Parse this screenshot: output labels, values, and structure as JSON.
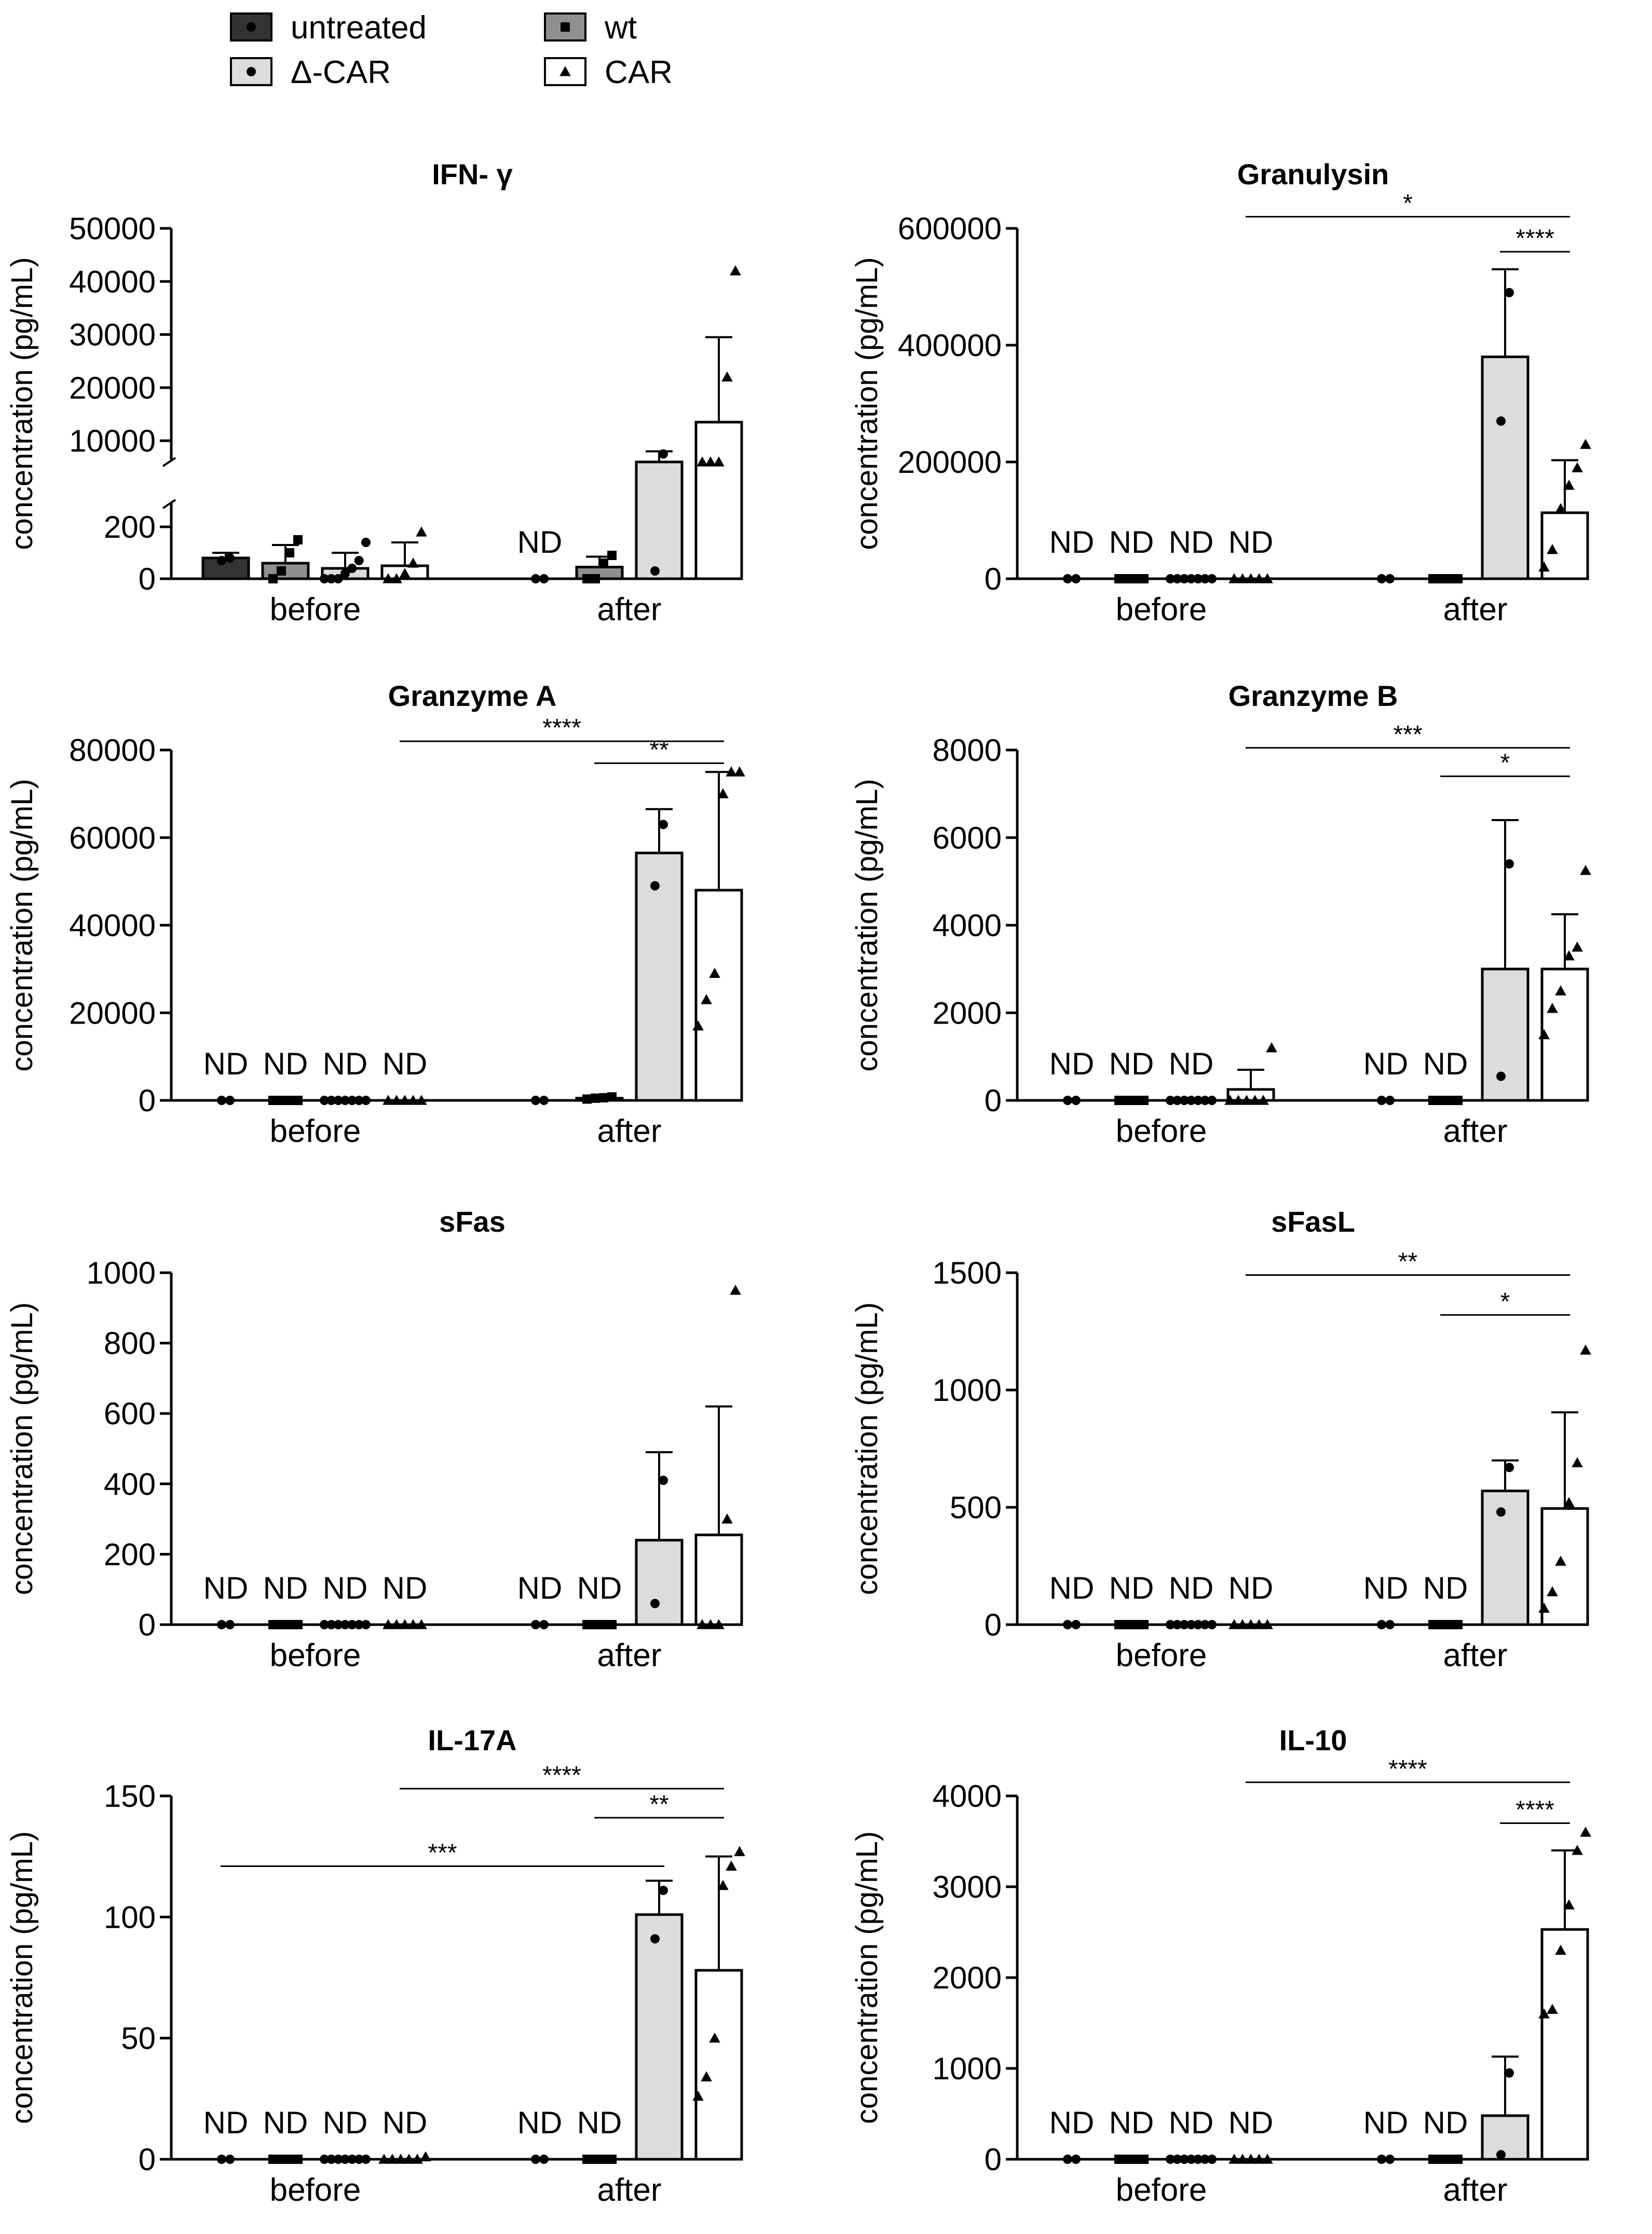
{
  "colors": {
    "untreated": "#333333",
    "wt": "#8f8f8f",
    "dcar": "#dcdcdc",
    "car": "#ffffff",
    "axis": "#000000"
  },
  "legend": {
    "items": [
      {
        "key": "untreated",
        "label": "untreated",
        "icon": "circle-icon"
      },
      {
        "key": "wt",
        "label": "wt",
        "icon": "square-icon"
      },
      {
        "key": "dcar",
        "label": "Δ-CAR",
        "icon": "circle-icon"
      },
      {
        "key": "car",
        "label": "CAR",
        "icon": "triangle-icon"
      }
    ]
  },
  "chart_data": [
    {
      "type": "bar",
      "title": "IFN- γ",
      "ylabel": "concentration (pg/mL)",
      "groups": [
        "before",
        "after"
      ],
      "series_order": [
        "untreated",
        "wt",
        "dcar",
        "car"
      ],
      "axis": {
        "broken": true,
        "lower": {
          "range": [
            0,
            300
          ],
          "ticks": [
            0,
            200
          ]
        },
        "upper": {
          "range": [
            6000,
            50000
          ],
          "ticks": [
            10000,
            20000,
            30000,
            40000,
            50000
          ]
        }
      },
      "bars": [
        {
          "g": 0,
          "s": "untreated",
          "v": 80,
          "err": 20,
          "pts": [
            70,
            80
          ]
        },
        {
          "g": 0,
          "s": "wt",
          "v": 60,
          "err": 70,
          "pts": [
            0,
            30,
            100,
            150
          ]
        },
        {
          "g": 0,
          "s": "dcar",
          "v": 40,
          "err": 60,
          "pts": [
            0,
            0,
            0,
            20,
            40,
            70,
            140
          ]
        },
        {
          "g": 0,
          "s": "car",
          "v": 50,
          "err": 90,
          "pts": [
            0,
            0,
            20,
            60,
            180
          ]
        },
        {
          "g": 1,
          "s": "untreated",
          "nd": true,
          "pts": [
            0,
            0
          ]
        },
        {
          "g": 1,
          "s": "wt",
          "v": 45,
          "err": 40,
          "pts": [
            0,
            0,
            60,
            90
          ]
        },
        {
          "g": 1,
          "s": "dcar",
          "v": 4000,
          "err": 4000,
          "pts": [
            30,
            7500
          ]
        },
        {
          "g": 1,
          "s": "car",
          "v": 13500,
          "err": 16000,
          "pts": [
            5000,
            5500,
            6000,
            22000,
            42000
          ]
        }
      ],
      "sig": []
    },
    {
      "type": "bar",
      "title": "Granulysin",
      "ylabel": "concentration (pg/mL)",
      "groups": [
        "before",
        "after"
      ],
      "series_order": [
        "untreated",
        "wt",
        "dcar",
        "car"
      ],
      "ylim": [
        0,
        600000
      ],
      "ticks": [
        0,
        200000,
        400000,
        600000
      ],
      "bars": [
        {
          "g": 0,
          "s": "untreated",
          "nd": true,
          "pts": [
            0,
            0
          ]
        },
        {
          "g": 0,
          "s": "wt",
          "nd": true,
          "pts": [
            0,
            0,
            0,
            0
          ]
        },
        {
          "g": 0,
          "s": "dcar",
          "nd": true,
          "pts": [
            0,
            0,
            0,
            0,
            0,
            0,
            0
          ]
        },
        {
          "g": 0,
          "s": "car",
          "nd": true,
          "pts": [
            0,
            0,
            0,
            0,
            0
          ]
        },
        {
          "g": 1,
          "s": "untreated",
          "pts": [
            0,
            0
          ]
        },
        {
          "g": 1,
          "s": "wt",
          "pts": [
            0,
            0,
            0,
            0
          ]
        },
        {
          "g": 1,
          "s": "dcar",
          "v": 380000,
          "err": 150000,
          "pts": [
            270000,
            490000
          ]
        },
        {
          "g": 1,
          "s": "car",
          "v": 113000,
          "err": 90000,
          "pts": [
            20000,
            50000,
            120000,
            160000,
            190000,
            230000
          ]
        }
      ],
      "sig": [
        {
          "label": "*",
          "from": [
            0,
            "car"
          ],
          "to": [
            1,
            "car"
          ],
          "y": 620000
        },
        {
          "label": "****",
          "from": [
            1,
            "dcar"
          ],
          "to": [
            1,
            "car"
          ],
          "y": 560000
        }
      ]
    },
    {
      "type": "bar",
      "title": "Granzyme A",
      "ylabel": "concentration (pg/mL)",
      "groups": [
        "before",
        "after"
      ],
      "series_order": [
        "untreated",
        "wt",
        "dcar",
        "car"
      ],
      "ylim": [
        0,
        80000
      ],
      "ticks": [
        0,
        20000,
        40000,
        60000,
        80000
      ],
      "bars": [
        {
          "g": 0,
          "s": "untreated",
          "nd": true,
          "pts": [
            0,
            0
          ]
        },
        {
          "g": 0,
          "s": "wt",
          "nd": true,
          "pts": [
            0,
            0,
            0,
            0
          ]
        },
        {
          "g": 0,
          "s": "dcar",
          "nd": true,
          "pts": [
            0,
            0,
            0,
            0,
            0,
            0,
            0
          ]
        },
        {
          "g": 0,
          "s": "car",
          "nd": true,
          "pts": [
            0,
            0,
            0,
            0,
            0
          ]
        },
        {
          "g": 1,
          "s": "untreated",
          "pts": [
            0,
            0
          ]
        },
        {
          "g": 1,
          "s": "wt",
          "v": 500,
          "err": 200,
          "pts": [
            300,
            500,
            600,
            800
          ]
        },
        {
          "g": 1,
          "s": "dcar",
          "v": 56500,
          "err": 10000,
          "pts": [
            49000,
            63000
          ]
        },
        {
          "g": 1,
          "s": "car",
          "v": 48000,
          "err": 27000,
          "pts": [
            17000,
            23000,
            29000,
            70000,
            75000,
            75000
          ]
        }
      ],
      "sig": [
        {
          "label": "****",
          "from": [
            0,
            "car"
          ],
          "to": [
            1,
            "car"
          ],
          "y": 82000
        },
        {
          "label": "**",
          "from": [
            1,
            "wt"
          ],
          "to": [
            1,
            "car"
          ],
          "y": 77000
        }
      ]
    },
    {
      "type": "bar",
      "title": "Granzyme B",
      "ylabel": "concentration (pg/mL)",
      "groups": [
        "before",
        "after"
      ],
      "series_order": [
        "untreated",
        "wt",
        "dcar",
        "car"
      ],
      "ylim": [
        0,
        8000
      ],
      "ticks": [
        0,
        2000,
        4000,
        6000,
        8000
      ],
      "bars": [
        {
          "g": 0,
          "s": "untreated",
          "nd": true,
          "pts": [
            0,
            0
          ]
        },
        {
          "g": 0,
          "s": "wt",
          "nd": true,
          "pts": [
            0,
            0,
            0,
            0
          ]
        },
        {
          "g": 0,
          "s": "dcar",
          "nd": true,
          "pts": [
            0,
            0,
            0,
            0,
            0,
            0,
            0
          ]
        },
        {
          "g": 0,
          "s": "car",
          "v": 250,
          "err": 450,
          "pts": [
            0,
            0,
            0,
            0,
            0,
            1200
          ]
        },
        {
          "g": 1,
          "s": "untreated",
          "nd": true,
          "pts": [
            0,
            0
          ]
        },
        {
          "g": 1,
          "s": "wt",
          "nd": true,
          "pts": [
            0,
            0,
            0,
            0
          ]
        },
        {
          "g": 1,
          "s": "dcar",
          "v": 3000,
          "err": 3400,
          "pts": [
            550,
            5400
          ]
        },
        {
          "g": 1,
          "s": "car",
          "v": 3000,
          "err": 1250,
          "pts": [
            1500,
            2100,
            2500,
            3300,
            3500,
            5250
          ]
        }
      ],
      "sig": [
        {
          "label": "***",
          "from": [
            0,
            "car"
          ],
          "to": [
            1,
            "car"
          ],
          "y": 8050
        },
        {
          "label": "*",
          "from": [
            1,
            "wt"
          ],
          "to": [
            1,
            "car"
          ],
          "y": 7400
        }
      ]
    },
    {
      "type": "bar",
      "title": "sFas",
      "ylabel": "concentration (pg/mL)",
      "groups": [
        "before",
        "after"
      ],
      "series_order": [
        "untreated",
        "wt",
        "dcar",
        "car"
      ],
      "ylim": [
        0,
        1000
      ],
      "ticks": [
        0,
        200,
        400,
        600,
        800,
        1000
      ],
      "bars": [
        {
          "g": 0,
          "s": "untreated",
          "nd": true,
          "pts": [
            0,
            0
          ]
        },
        {
          "g": 0,
          "s": "wt",
          "nd": true,
          "pts": [
            0,
            0,
            0,
            0
          ]
        },
        {
          "g": 0,
          "s": "dcar",
          "nd": true,
          "pts": [
            0,
            0,
            0,
            0,
            0,
            0,
            0
          ]
        },
        {
          "g": 0,
          "s": "car",
          "nd": true,
          "pts": [
            0,
            0,
            0,
            0,
            0
          ]
        },
        {
          "g": 1,
          "s": "untreated",
          "nd": true,
          "pts": [
            0,
            0
          ]
        },
        {
          "g": 1,
          "s": "wt",
          "nd": true,
          "pts": [
            0,
            0,
            0,
            0
          ]
        },
        {
          "g": 1,
          "s": "dcar",
          "v": 240,
          "err": 250,
          "pts": [
            60,
            410
          ]
        },
        {
          "g": 1,
          "s": "car",
          "v": 255,
          "err": 365,
          "pts": [
            0,
            0,
            0,
            300,
            950
          ]
        }
      ],
      "sig": []
    },
    {
      "type": "bar",
      "title": "sFasL",
      "ylabel": "concentration (pg/mL)",
      "groups": [
        "before",
        "after"
      ],
      "series_order": [
        "untreated",
        "wt",
        "dcar",
        "car"
      ],
      "ylim": [
        0,
        1500
      ],
      "ticks": [
        0,
        500,
        1000,
        1500
      ],
      "bars": [
        {
          "g": 0,
          "s": "untreated",
          "nd": true,
          "pts": [
            0,
            0
          ]
        },
        {
          "g": 0,
          "s": "wt",
          "nd": true,
          "pts": [
            0,
            0,
            0,
            0
          ]
        },
        {
          "g": 0,
          "s": "dcar",
          "nd": true,
          "pts": [
            0,
            0,
            0,
            0,
            0,
            0,
            0
          ]
        },
        {
          "g": 0,
          "s": "car",
          "nd": true,
          "pts": [
            0,
            0,
            0,
            0,
            0
          ]
        },
        {
          "g": 1,
          "s": "untreated",
          "nd": true,
          "pts": [
            0,
            0
          ]
        },
        {
          "g": 1,
          "s": "wt",
          "nd": true,
          "pts": [
            0,
            0,
            0,
            0
          ]
        },
        {
          "g": 1,
          "s": "dcar",
          "v": 570,
          "err": 130,
          "pts": [
            480,
            670
          ]
        },
        {
          "g": 1,
          "s": "car",
          "v": 495,
          "err": 410,
          "pts": [
            70,
            140,
            270,
            520,
            690,
            1170
          ]
        }
      ],
      "sig": [
        {
          "label": "**",
          "from": [
            0,
            "car"
          ],
          "to": [
            1,
            "car"
          ],
          "y": 1490
        },
        {
          "label": "*",
          "from": [
            1,
            "wt"
          ],
          "to": [
            1,
            "car"
          ],
          "y": 1320
        }
      ]
    },
    {
      "type": "bar",
      "title": "IL-17A",
      "ylabel": "concentration (pg/mL)",
      "groups": [
        "before",
        "after"
      ],
      "series_order": [
        "untreated",
        "wt",
        "dcar",
        "car"
      ],
      "ylim": [
        0,
        150
      ],
      "ticks": [
        0,
        50,
        100,
        150
      ],
      "bars": [
        {
          "g": 0,
          "s": "untreated",
          "nd": true,
          "pts": [
            0,
            0
          ]
        },
        {
          "g": 0,
          "s": "wt",
          "nd": true,
          "pts": [
            0,
            0,
            0,
            0
          ]
        },
        {
          "g": 0,
          "s": "dcar",
          "nd": true,
          "pts": [
            0,
            0,
            0,
            0,
            0,
            0,
            0
          ]
        },
        {
          "g": 0,
          "s": "car",
          "nd": true,
          "pts": [
            0,
            0,
            0,
            0,
            0,
            1
          ]
        },
        {
          "g": 1,
          "s": "untreated",
          "nd": true,
          "pts": [
            0,
            0
          ]
        },
        {
          "g": 1,
          "s": "wt",
          "nd": true,
          "pts": [
            0,
            0,
            0,
            0
          ]
        },
        {
          "g": 1,
          "s": "dcar",
          "v": 101,
          "err": 14,
          "pts": [
            91,
            111
          ]
        },
        {
          "g": 1,
          "s": "car",
          "v": 78,
          "err": 47,
          "pts": [
            26,
            34,
            50,
            113,
            121,
            127
          ]
        }
      ],
      "sig": [
        {
          "label": "****",
          "from": [
            0,
            "car"
          ],
          "to": [
            1,
            "car"
          ],
          "y": 153
        },
        {
          "label": "**",
          "from": [
            1,
            "wt"
          ],
          "to": [
            1,
            "car"
          ],
          "y": 141
        },
        {
          "label": "***",
          "from": [
            0,
            "untreated"
          ],
          "to": [
            1,
            "dcar"
          ],
          "y": 121
        }
      ]
    },
    {
      "type": "bar",
      "title": "IL-10",
      "ylabel": "concentration (pg/mL)",
      "groups": [
        "before",
        "after"
      ],
      "series_order": [
        "untreated",
        "wt",
        "dcar",
        "car"
      ],
      "ylim": [
        0,
        4000
      ],
      "ticks": [
        0,
        1000,
        2000,
        3000,
        4000
      ],
      "bars": [
        {
          "g": 0,
          "s": "untreated",
          "nd": true,
          "pts": [
            0,
            0
          ]
        },
        {
          "g": 0,
          "s": "wt",
          "nd": true,
          "pts": [
            0,
            0,
            0,
            0
          ]
        },
        {
          "g": 0,
          "s": "dcar",
          "nd": true,
          "pts": [
            0,
            0,
            0,
            0,
            0,
            0,
            0
          ]
        },
        {
          "g": 0,
          "s": "car",
          "nd": true,
          "pts": [
            0,
            0,
            0,
            0,
            0
          ]
        },
        {
          "g": 1,
          "s": "untreated",
          "nd": true,
          "pts": [
            0,
            0
          ]
        },
        {
          "g": 1,
          "s": "wt",
          "nd": true,
          "pts": [
            0,
            0,
            0,
            0
          ]
        },
        {
          "g": 1,
          "s": "dcar",
          "v": 480,
          "err": 650,
          "pts": [
            50,
            950
          ]
        },
        {
          "g": 1,
          "s": "car",
          "v": 2530,
          "err": 870,
          "pts": [
            1600,
            1650,
            2300,
            2800,
            3400,
            3600
          ]
        }
      ],
      "sig": [
        {
          "label": "****",
          "from": [
            0,
            "car"
          ],
          "to": [
            1,
            "car"
          ],
          "y": 4150
        },
        {
          "label": "****",
          "from": [
            1,
            "dcar"
          ],
          "to": [
            1,
            "car"
          ],
          "y": 3700
        }
      ]
    }
  ]
}
